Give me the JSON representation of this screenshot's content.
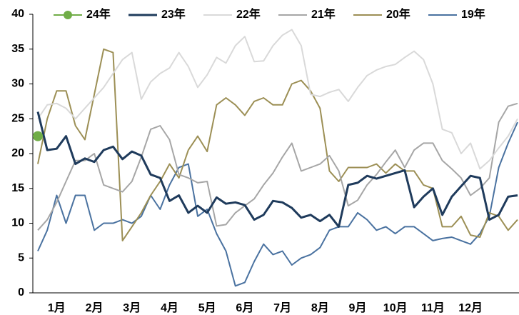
{
  "chart_data": {
    "type": "line",
    "categories": [
      null,
      null,
      "1月",
      null,
      null,
      null,
      "2月",
      null,
      null,
      null,
      "3月",
      null,
      null,
      null,
      "4月",
      null,
      null,
      null,
      "5月",
      null,
      null,
      null,
      "6月",
      null,
      null,
      null,
      "7月",
      null,
      null,
      null,
      "8月",
      null,
      null,
      null,
      "9月",
      null,
      null,
      null,
      "10月",
      null,
      null,
      null,
      "11月",
      null,
      null,
      null,
      "12月",
      null,
      null,
      null,
      null,
      null
    ],
    "ylim": [
      0,
      40
    ],
    "yticks": [
      0,
      5,
      10,
      15,
      20,
      25,
      30,
      35,
      40
    ],
    "grid": false,
    "legend": "top",
    "series": [
      {
        "name": "24年",
        "color": "#70ad47",
        "marker": "circle",
        "values": [
          22.5,
          null,
          null,
          null,
          null,
          null,
          null,
          null,
          null,
          null,
          null,
          null,
          null,
          null,
          null,
          null,
          null,
          null,
          null,
          null,
          null,
          null,
          null,
          null,
          null,
          null,
          null,
          null,
          null,
          null,
          null,
          null,
          null,
          null,
          null,
          null,
          null,
          null,
          null,
          null,
          null,
          null,
          null,
          null,
          null,
          null,
          null,
          null,
          null,
          null,
          null,
          null
        ]
      },
      {
        "name": "23年",
        "color": "#1f3b5c",
        "values": [
          26,
          20.5,
          20.7,
          22.5,
          18.5,
          19.3,
          18.8,
          20.5,
          21,
          19.2,
          20.3,
          19.7,
          17,
          16.5,
          13.2,
          14,
          11.5,
          12.5,
          11.5,
          13.7,
          12.8,
          13,
          12.6,
          10.5,
          11.2,
          13.2,
          13,
          12.2,
          10.8,
          11.2,
          10.3,
          11.2,
          9.5,
          15.5,
          15.8,
          16.8,
          16.4,
          16.8,
          17.2,
          17.6,
          12.3,
          13.8,
          15,
          11.2,
          13.8,
          15.3,
          16.8,
          16.5,
          10.5,
          11.2,
          13.8,
          14
        ]
      },
      {
        "name": "22年",
        "color": "#d9d9d9",
        "values": [
          25,
          27,
          27.2,
          26.5,
          25,
          26.5,
          28,
          29.5,
          31.5,
          33.5,
          34.5,
          27.8,
          30.3,
          31.5,
          32.3,
          34.5,
          32.5,
          29.5,
          31.3,
          33.8,
          33,
          35.5,
          36.8,
          33.2,
          33.3,
          35.5,
          37,
          37.8,
          35.5,
          28.5,
          28.2,
          28.8,
          29.2,
          27.5,
          29.5,
          31.2,
          32,
          32.5,
          32.8,
          33.8,
          34.7,
          33.5,
          30,
          23.5,
          23,
          20,
          21.5,
          17.8,
          19,
          20.8,
          22.5,
          25
        ]
      },
      {
        "name": "21年",
        "color": "#a6a6a6",
        "values": [
          9,
          10.5,
          13,
          16,
          19,
          19,
          20,
          15.5,
          15,
          14.5,
          16,
          19.5,
          23.5,
          24,
          22,
          17,
          16.5,
          15.8,
          16,
          9.6,
          9.8,
          11.5,
          12.5,
          13.5,
          15.5,
          17.2,
          19.5,
          21.5,
          17.5,
          18,
          18.5,
          19.7,
          17.5,
          12.5,
          13.3,
          15.5,
          17,
          18.8,
          20.5,
          18,
          20.5,
          21.5,
          21.5,
          19,
          17.8,
          16.5,
          14,
          15,
          16.5,
          24.5,
          26.8,
          27.2
        ]
      },
      {
        "name": "20年",
        "color": "#9c8f55",
        "values": [
          18.5,
          25,
          29,
          29,
          24,
          22,
          28.5,
          35,
          34.5,
          7.5,
          9.5,
          11.5,
          14,
          16,
          18.5,
          16.5,
          20.5,
          22.5,
          20.3,
          27,
          28,
          27,
          25.5,
          27.5,
          28,
          27,
          27,
          30,
          30.5,
          29,
          26.5,
          17.5,
          16,
          18,
          18,
          18,
          18.5,
          17.2,
          18.5,
          17.5,
          17.5,
          15.5,
          15,
          9.5,
          9.5,
          11,
          8.3,
          8,
          11.5,
          11,
          9,
          10.5
        ]
      },
      {
        "name": "19年",
        "color": "#4a72a0",
        "values": [
          6,
          9,
          14,
          10,
          14,
          14,
          9,
          10,
          10,
          10.5,
          10,
          11,
          14,
          12,
          15.5,
          18,
          18.5,
          11,
          12,
          8.5,
          6,
          1,
          1.5,
          4.5,
          7,
          5.5,
          6,
          4,
          5,
          5.5,
          6.5,
          9,
          9.5,
          9.5,
          11.5,
          10.5,
          9,
          9.5,
          8.5,
          9.5,
          9.5,
          8.5,
          7.5,
          7.8,
          8,
          7.5,
          7,
          8.5,
          11,
          18,
          21.5,
          24.5
        ]
      }
    ]
  }
}
